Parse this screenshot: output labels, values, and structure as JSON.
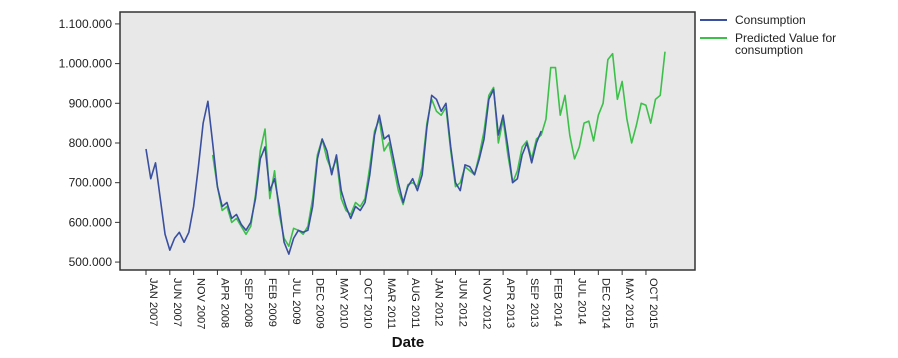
{
  "chart_data": {
    "type": "line",
    "xlabel": "Date",
    "ylabel": "",
    "ylim": [
      480000,
      1130000
    ],
    "y_ticks": [
      "500.000",
      "600.000",
      "700.000",
      "800.000",
      "900.000",
      "1.000.000",
      "1.100.000"
    ],
    "y_tick_values": [
      500000,
      600000,
      700000,
      800000,
      900000,
      1000000,
      1100000
    ],
    "x_tick_labels": [
      "JAN 2007",
      "JUN 2007",
      "NOV 2007",
      "APR 2008",
      "SEP 2008",
      "FEB 2009",
      "JUL 2009",
      "DEC 2009",
      "MAY 2010",
      "OCT 2010",
      "MAR 2011",
      "AUG 2011",
      "JAN 2012",
      "JUN 2012",
      "NOV 2012",
      "APR 2013",
      "SEP 2013",
      "FEB 2014",
      "JUL 2014",
      "DEC 2014",
      "MAY 2015",
      "OCT 2015"
    ],
    "x_start": "JAN 2007",
    "grid": false,
    "legend_placement": "right",
    "colors": {
      "consumption": "#3a4fa0",
      "predicted": "#3cc04a",
      "plot_bg": "#e8e8e8"
    },
    "series": [
      {
        "name": "Consumption",
        "values": [
          785000,
          710000,
          750000,
          660000,
          570000,
          530000,
          560000,
          575000,
          550000,
          575000,
          640000,
          740000,
          850000,
          905000,
          800000,
          690000,
          640000,
          650000,
          610000,
          620000,
          595000,
          580000,
          600000,
          660000,
          760000,
          790000,
          680000,
          710000,
          640000,
          550000,
          520000,
          560000,
          580000,
          575000,
          580000,
          640000,
          760000,
          810000,
          780000,
          720000,
          770000,
          680000,
          640000,
          610000,
          640000,
          630000,
          650000,
          720000,
          820000,
          870000,
          810000,
          820000,
          760000,
          700000,
          650000,
          690000,
          710000,
          680000,
          720000,
          840000,
          920000,
          910000,
          880000,
          900000,
          790000,
          700000,
          680000,
          745000,
          740000,
          720000,
          760000,
          810000,
          910000,
          935000,
          820000,
          870000,
          790000,
          700000,
          710000,
          770000,
          800000,
          750000,
          800000,
          830000
        ]
      },
      {
        "name": "Predicted Value for consumption",
        "values": [
          null,
          null,
          null,
          null,
          null,
          null,
          null,
          null,
          null,
          null,
          null,
          null,
          null,
          null,
          770000,
          690000,
          630000,
          640000,
          600000,
          610000,
          590000,
          570000,
          590000,
          670000,
          780000,
          835000,
          660000,
          730000,
          620000,
          560000,
          540000,
          585000,
          580000,
          570000,
          590000,
          660000,
          770000,
          810000,
          760000,
          730000,
          760000,
          660000,
          630000,
          620000,
          650000,
          640000,
          660000,
          740000,
          830000,
          860000,
          780000,
          800000,
          740000,
          680000,
          645000,
          695000,
          700000,
          690000,
          740000,
          850000,
          910000,
          880000,
          870000,
          890000,
          780000,
          690000,
          700000,
          740000,
          730000,
          720000,
          770000,
          830000,
          920000,
          940000,
          800000,
          860000,
          770000,
          700000,
          730000,
          790000,
          805000,
          760000,
          810000,
          820000,
          860000,
          990000,
          990000,
          870000,
          920000,
          820000,
          760000,
          790000,
          850000,
          855000,
          805000,
          870000,
          900000,
          1010000,
          1025000,
          910000,
          955000,
          860000,
          800000,
          845000,
          900000,
          895000,
          850000,
          910000,
          920000,
          1030000
        ]
      }
    ]
  }
}
